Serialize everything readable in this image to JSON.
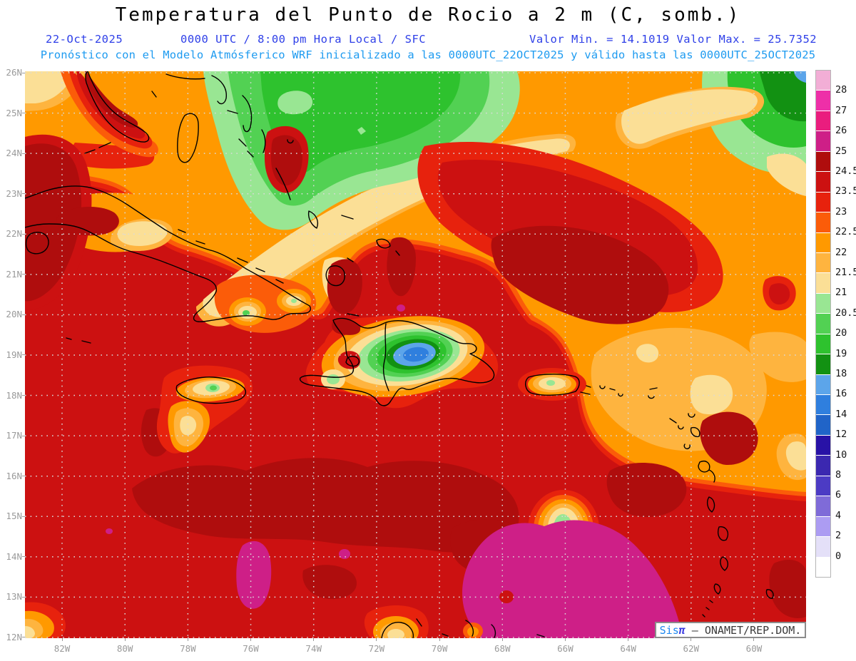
{
  "header": {
    "title": "Temperatura del Punto de Rocio a 2 m (C, somb.)",
    "date": "22-Oct-2025",
    "time_info": "0000 UTC / 8:00 pm Hora Local / SFC",
    "minmax": "Valor Min. = 14.1019  Valor Max. = 25.7352",
    "forecast_line": "Pronóstico con el Modelo Atmósferico WRF inicializado a las 0000UTC_22OCT2025 y válido hasta las 0000UTC_25OCT2025"
  },
  "attribution": {
    "sis": "Sis",
    "pi": "π",
    "rest": " – ONAMET/REP.DOM."
  },
  "axes": {
    "x_ticks": [
      "82W",
      "80W",
      "78W",
      "76W",
      "74W",
      "72W",
      "70W",
      "68W",
      "66W",
      "64W",
      "62W",
      "60W"
    ],
    "y_ticks": [
      "26N",
      "25N",
      "24N",
      "23N",
      "22N",
      "21N",
      "20N",
      "19N",
      "18N",
      "17N",
      "16N",
      "15N",
      "14N",
      "13N",
      "12N"
    ]
  },
  "chart_data": {
    "type": "heatmap",
    "title": "Temperatura del Punto de Rocio a 2 m (C, somb.)",
    "variable": "2 m dew point temperature",
    "units": "C",
    "model": "WRF",
    "run_date": "22-Oct-2025",
    "run_time": "0000 UTC / 8:00 pm Hora Local / SFC",
    "initialized": "0000UTC_22OCT2025",
    "valid_until": "0000UTC_25OCT2025",
    "valor_min": 14.1019,
    "valor_max": 25.7352,
    "xlabel": "Longitude (82W - 60W)",
    "ylabel": "Latitude (12N - 26N)",
    "x_ticks": [
      "82W",
      "80W",
      "78W",
      "76W",
      "74W",
      "72W",
      "70W",
      "68W",
      "66W",
      "64W",
      "62W",
      "60W"
    ],
    "y_ticks": [
      "26N",
      "25N",
      "24N",
      "23N",
      "22N",
      "21N",
      "20N",
      "19N",
      "18N",
      "17N",
      "16N",
      "15N",
      "14N",
      "13N",
      "12N"
    ],
    "grid": "dotted, 2 deg lon x 1 deg lat",
    "legend_position": "right colorbar",
    "levels": [
      0,
      2,
      4,
      6,
      8,
      10,
      12,
      14,
      16,
      18,
      19,
      20,
      20.5,
      21,
      21.5,
      22,
      22.5,
      23,
      23.5,
      24.5,
      25,
      26,
      27,
      28
    ],
    "palette": [
      "#FFFFFF",
      "#E4E0F8",
      "#AC9CF2",
      "#7F6BD8",
      "#4C3BC4",
      "#3B28B0",
      "#2812A6",
      "#2064C8",
      "#2F7FDE",
      "#5CA5EA",
      "#129112",
      "#2EC22E",
      "#52D153",
      "#99E693",
      "#FBDF96",
      "#FEB43F",
      "#FF9900",
      "#FB5C09",
      "#E7220D",
      "#CC1111",
      "#AF0D0D",
      "#CE1F87",
      "#EA1D7E",
      "#EE2FA8",
      "#F2AED6"
    ],
    "features": [
      "Most of the Caribbean Sea shaded red to dark red (dew points 23.5-25 C)",
      "Broad orange band (22-22.5 C) across the north from Florida and the Bahamas to the NE Atlantic quadrant",
      "Green air mass (19-21 C) over the central Bahamas and the northeast corner, with pale-yellow fringes",
      "Cool bullseye over the Cordillera Central of Hispaniola: yellow-green rings down to blue 14-18 C core",
      "Local yellow/green minima over Jamaica, SE Cuba, Puerto Rico and a green spot SE of Puerto Rico near 16.5N",
      "Magenta maxima above 25-26 C in the far south near 12-14N (around 76W and 66-69W)",
      "Dotted lat/lon grid, black coastlines, gray axis labels"
    ]
  }
}
